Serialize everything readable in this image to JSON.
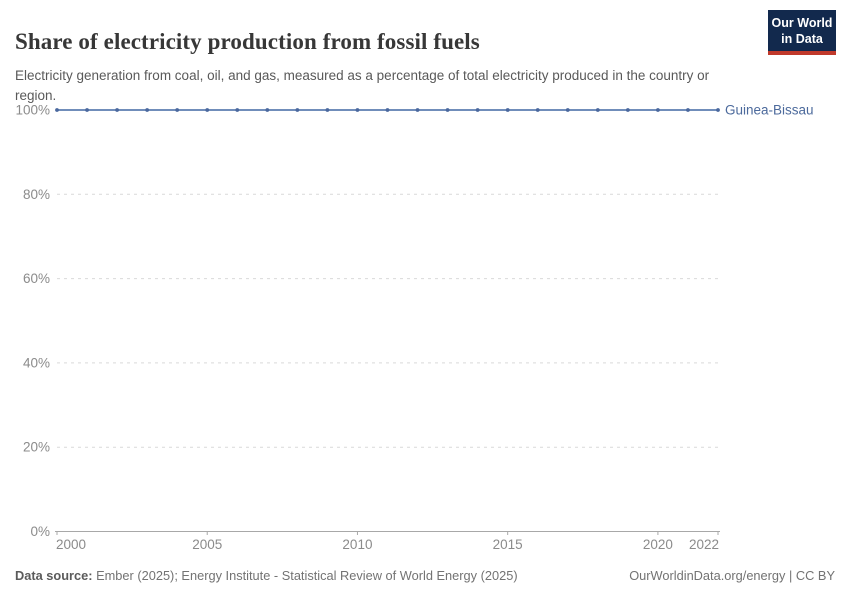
{
  "header": {
    "title": "Share of electricity production from fossil fuels",
    "subtitle": "Electricity generation from coal, oil, and gas, measured as a percentage of total electricity produced in the country or region.",
    "logo": {
      "line1": "Our World",
      "line2": "in Data"
    }
  },
  "chart_data": {
    "type": "line",
    "title": "Share of electricity production from fossil fuels",
    "x": [
      2000,
      2001,
      2002,
      2003,
      2004,
      2005,
      2006,
      2007,
      2008,
      2009,
      2010,
      2011,
      2012,
      2013,
      2014,
      2015,
      2016,
      2017,
      2018,
      2019,
      2020,
      2021,
      2022
    ],
    "series": [
      {
        "name": "Guinea-Bissau",
        "values": [
          100,
          100,
          100,
          100,
          100,
          100,
          100,
          100,
          100,
          100,
          100,
          100,
          100,
          100,
          100,
          100,
          100,
          100,
          100,
          100,
          100,
          100,
          100
        ],
        "color": "#4C6A9C"
      }
    ],
    "xlabel": "",
    "ylabel": "",
    "ylim": [
      0,
      100
    ],
    "yticks": [
      0,
      20,
      40,
      60,
      80,
      100
    ],
    "ytick_labels": [
      "0%",
      "20%",
      "40%",
      "60%",
      "80%",
      "100%"
    ],
    "xticks": [
      2000,
      2005,
      2010,
      2015,
      2020,
      2022
    ],
    "grid": "horizontal-dashed",
    "legend_position": "label-at-line-end"
  },
  "footer": {
    "source_label": "Data source:",
    "source_text": " Ember (2025); Energy Institute - Statistical Review of World Energy (2025)",
    "credit": "OurWorldinData.org/energy | CC BY"
  },
  "colors": {
    "series": "#4C6A9C",
    "line": "#5b7db1",
    "point": "#4a689e",
    "grid": "#d9d9d9",
    "axis": "#a8a8a8",
    "tick_text": "#8b8b8b",
    "logo_bg": "#12294d",
    "logo_red": "#c0392b"
  }
}
